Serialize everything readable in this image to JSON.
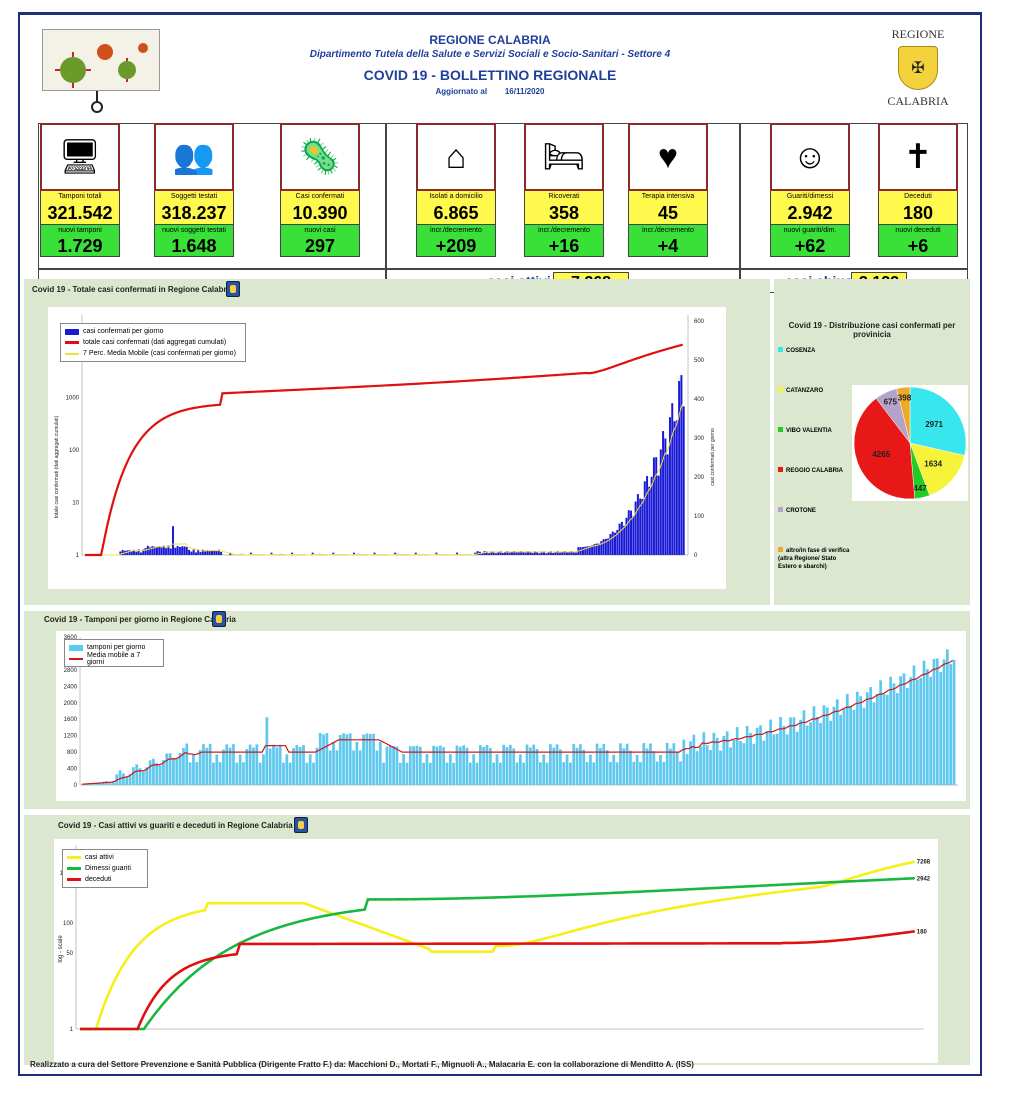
{
  "header": {
    "region": "REGIONE CALABRIA",
    "department": "Dipartimento Tutela della Salute e Servizi Sociali e Socio-Sanitari - Settore 4",
    "bulletin": "COVID 19 - BOLLETTINO REGIONALE",
    "updated_label": "Aggiornato al",
    "updated_date": "16/11/2020",
    "logo_top": "REGIONE",
    "logo_bottom": "CALABRIA"
  },
  "kpis": [
    {
      "label": "Tamponi totali",
      "value": "321.542",
      "sublabel": "nuovi tamponi",
      "subvalue": "1.729",
      "icon": "lab-icon"
    },
    {
      "label": "Soggetti testati",
      "value": "318.237",
      "sublabel": "nuovi soggetti testati",
      "subvalue": "1.648",
      "icon": "people-icon"
    },
    {
      "label": "Casi confermati",
      "value": "10.390",
      "sublabel": "nuovi casi",
      "subvalue": "297",
      "icon": "virus-icon"
    },
    {
      "label": "Isolati a domicilio",
      "value": "6.865",
      "sublabel": "incr./decremento",
      "subvalue": "+209",
      "icon": "house-icon"
    },
    {
      "label": "Ricoverati",
      "value": "358",
      "sublabel": "incr./decremento",
      "subvalue": "+16",
      "icon": "hospital-bed-icon"
    },
    {
      "label": "Terapia intensiva",
      "value": "45",
      "sublabel": "incr./decremento",
      "subvalue": "+4",
      "icon": "icu-icon"
    },
    {
      "label": "Guariti/dimessi",
      "value": "2.942",
      "sublabel": "nuovi guariti/dim.",
      "subvalue": "+62",
      "icon": "recovered-icon"
    },
    {
      "label": "Deceduti",
      "value": "180",
      "sublabel": "nuovi deceduti",
      "subvalue": "+6",
      "icon": "deceased-stamp-icon"
    }
  ],
  "summary": {
    "active_label": "casi attivi",
    "active_value": "7.268",
    "closed_label": "casi chiusi",
    "closed_value": "3.122"
  },
  "chart1": {
    "title": "Covid 19 - Totale casi confermati in Regione Calabria",
    "legend": [
      "casi confermati per giorno",
      "totale casi confermati (dati aggregati cumulati)",
      "7 Perc. Media Mobile (casi confermati per giorno)"
    ],
    "left_ticks": [
      "10000",
      "1000",
      "100",
      "10",
      "1"
    ],
    "right_ticks": [
      "600",
      "500",
      "400",
      "300",
      "200",
      "100",
      "0"
    ],
    "left_axis_label": "totale casi confermati (dati aggregati cumulati)",
    "right_axis_label": "casi confermati per giorno",
    "colors": {
      "bars": "#1a1ad6",
      "total": "#e01010",
      "avg": "#f0e040"
    }
  },
  "pie": {
    "title": "Covid 19 - Distribuzione casi confermati per provinicia",
    "slices": [
      {
        "name": "COSENZA",
        "value": 2971,
        "color": "#38e6ee"
      },
      {
        "name": "CATANZARO",
        "value": 1634,
        "color": "#f6f33a"
      },
      {
        "name": "VIBO VALENTIA",
        "value": 447,
        "color": "#22cc22"
      },
      {
        "name": "REGGIO CALABRIA",
        "value": 4265,
        "color": "#e81818"
      },
      {
        "name": "CROTONE",
        "value": 675,
        "color": "#b3a3c8"
      },
      {
        "name": "altro/in fase di verifica (altra Regione/ Stato Estero e sbarchi)",
        "value": 398,
        "color": "#f0a828"
      }
    ]
  },
  "chart2": {
    "title": "Covid 19 - Tamponi per giorno in Regione Calabria",
    "legend": [
      "tamponi per giorno",
      "Media mobile a 7 giorni"
    ],
    "ticks": [
      "3600",
      "3200",
      "2800",
      "2400",
      "2000",
      "1600",
      "1200",
      "800",
      "400",
      "0"
    ],
    "colors": {
      "bars": "#5ec8ee",
      "avg": "#d01818"
    }
  },
  "chart3": {
    "title": "Covid 19 - Casi attivi vs guariti e deceduti in Regione Calabria",
    "legend": [
      "casi attivi",
      "Dimessi guariti",
      "deceduti"
    ],
    "ticks": [
      "1000",
      "100",
      "50",
      "1"
    ],
    "axis_label": "log - scale",
    "end_labels": [
      "7268",
      "2942",
      "180"
    ],
    "colors": {
      "active": "#f6f01a",
      "recovered": "#18b840",
      "deceased": "#e01010"
    }
  },
  "chart_data": [
    {
      "type": "bar",
      "title": "Covid 19 - Totale casi confermati in Regione Calabria",
      "note": "daily confirmed cases (bars), cumulative total (log line), 7-day moving average"
    },
    {
      "type": "pie",
      "title": "Covid 19 - Distribuzione casi confermati per provinicia",
      "categories": [
        "COSENZA",
        "CATANZARO",
        "VIBO VALENTIA",
        "REGGIO CALABRIA",
        "CROTONE",
        "altro/in fase di verifica"
      ],
      "values": [
        2971,
        1634,
        447,
        4265,
        675,
        398
      ]
    },
    {
      "type": "bar",
      "title": "Covid 19 - Tamponi per giorno in Regione Calabria",
      "ylim": [
        0,
        3600
      ]
    },
    {
      "type": "line",
      "title": "Covid 19 - Casi attivi vs guariti e deceduti in Regione Calabria",
      "series": [
        {
          "name": "casi attivi",
          "last": 7268
        },
        {
          "name": "Dimessi guariti",
          "last": 2942
        },
        {
          "name": "deceduti",
          "last": 180
        }
      ]
    }
  ],
  "credit": "Realizzato a cura del Settore Prevenzione e Sanità Pubblica (Dirigente Fratto F.) da: Macchioni D., Mortati F., Mignuoli A., Malacaria E. con la collaborazione di Menditto A. (ISS)"
}
